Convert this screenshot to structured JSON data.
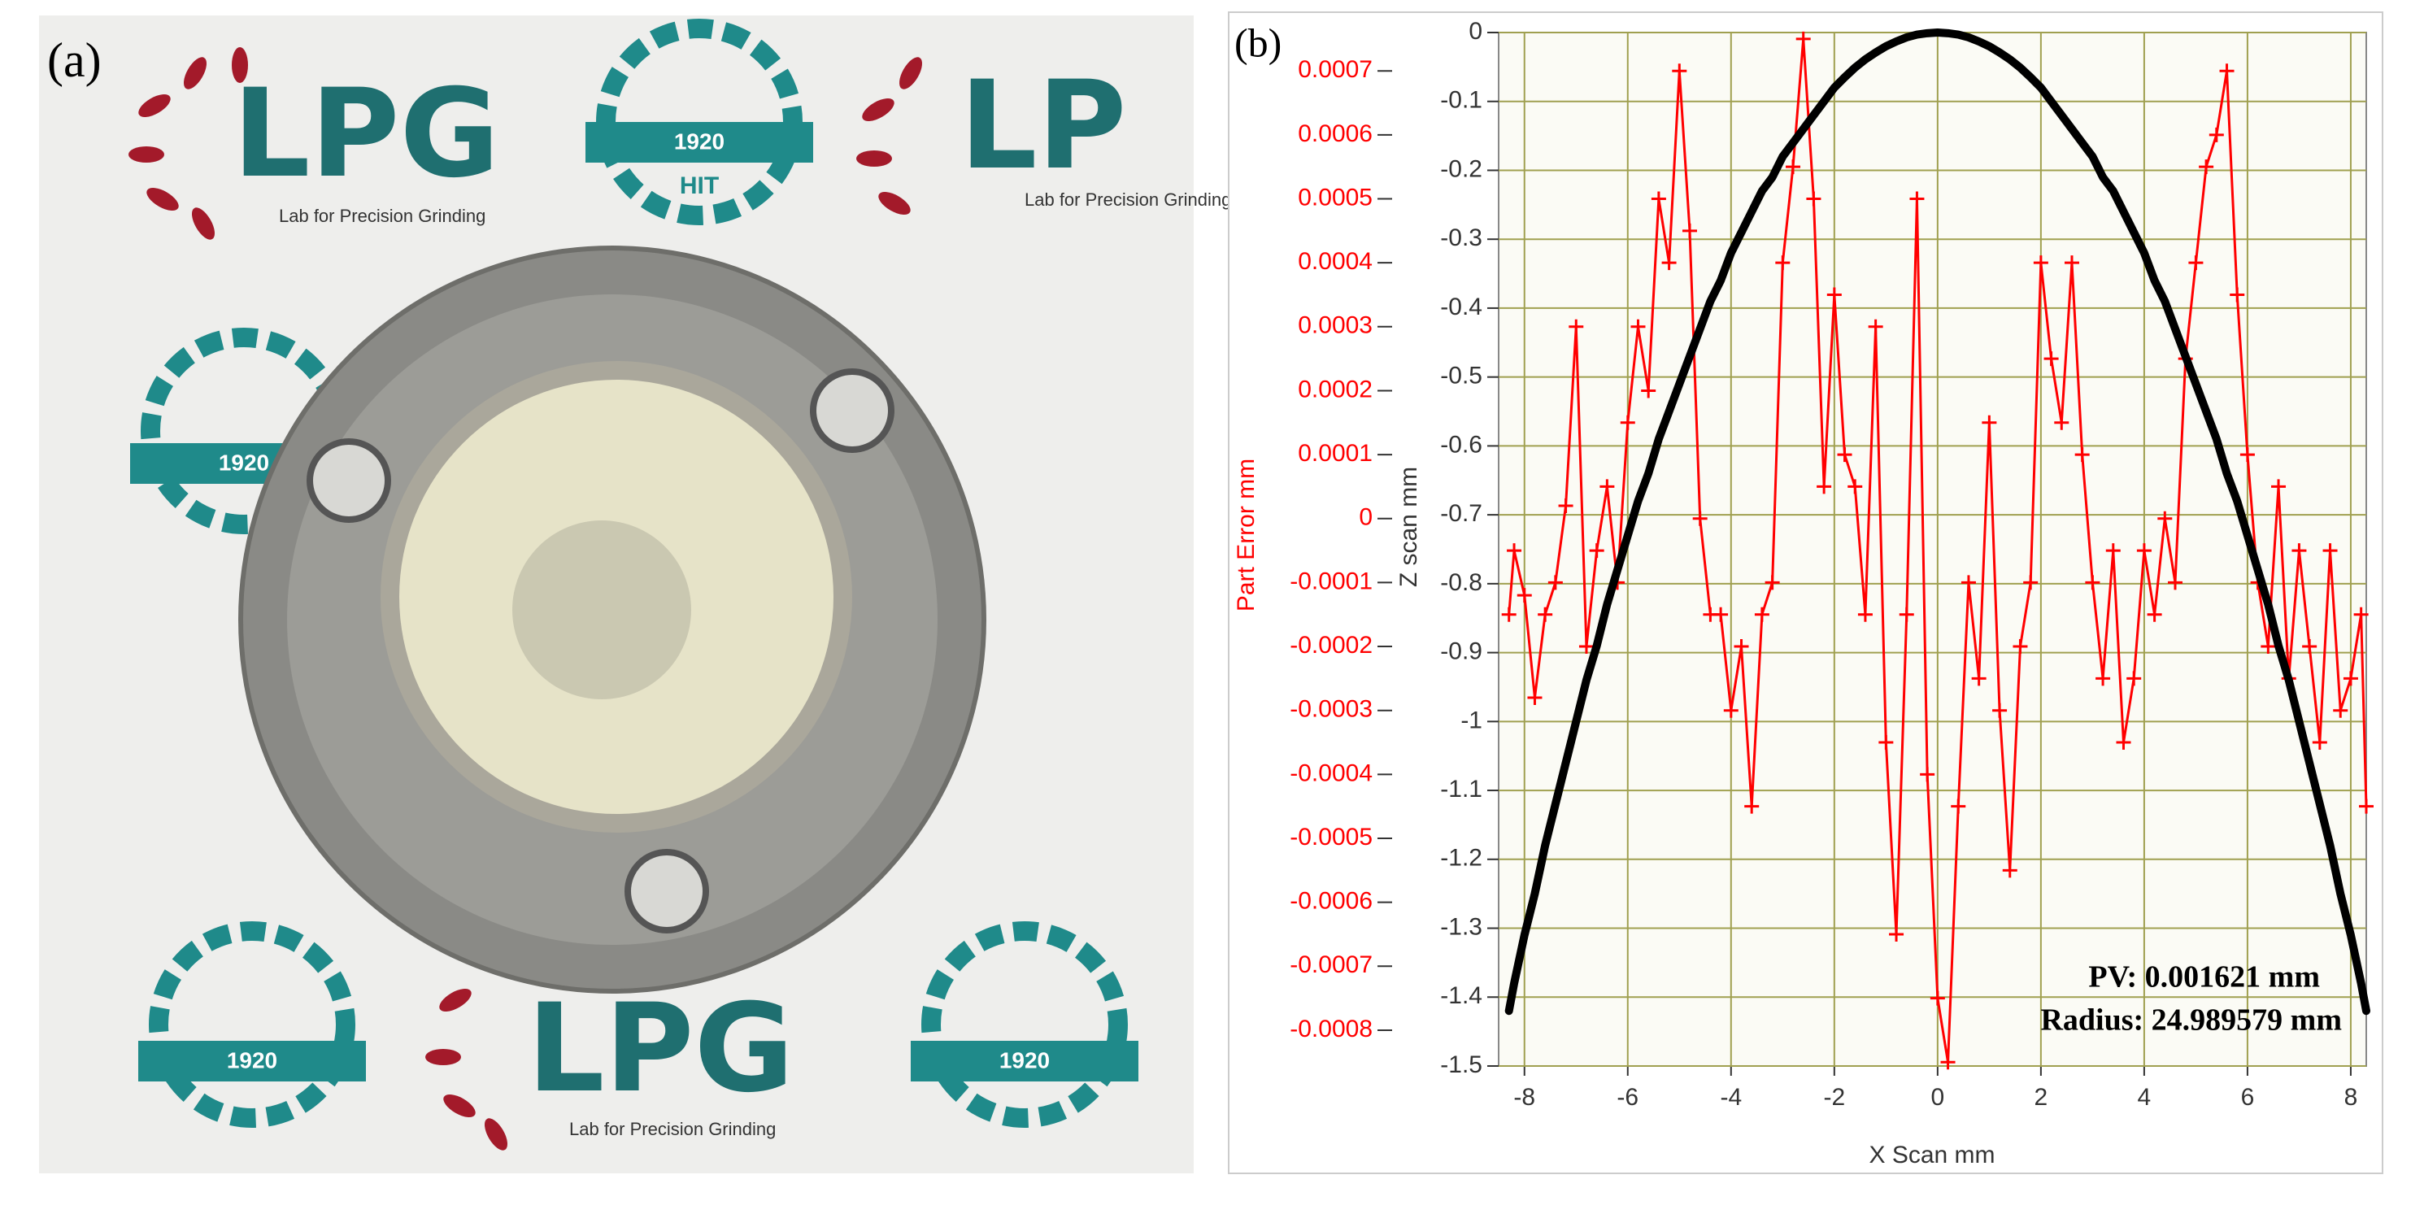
{
  "panels": {
    "a": "(a)"
  },
  "photo": {
    "logo_text": "LPG",
    "logo_text_cropped": "LP",
    "logo_subtitle": "Lab for Precision Grinding",
    "emblem_year": "1920",
    "emblem_text": "HIT"
  },
  "chart_data": {
    "type": "line",
    "panel_label": "(b)",
    "xlabel": "X Scan mm",
    "ylabel": "Z scan mm",
    "y2label": "Part Error mm",
    "x": [
      -8.3,
      -8.2,
      -8.0,
      -7.8,
      -7.6,
      -7.4,
      -7.2,
      -7.0,
      -6.8,
      -6.6,
      -6.4,
      -6.2,
      -6.0,
      -5.8,
      -5.6,
      -5.4,
      -5.2,
      -5.0,
      -4.8,
      -4.6,
      -4.4,
      -4.2,
      -4.0,
      -3.8,
      -3.6,
      -3.4,
      -3.2,
      -3.0,
      -2.8,
      -2.6,
      -2.4,
      -2.2,
      -2.0,
      -1.8,
      -1.6,
      -1.4,
      -1.2,
      -1.0,
      -0.8,
      -0.6,
      -0.4,
      -0.2,
      0.0,
      0.2,
      0.4,
      0.6,
      0.8,
      1.0,
      1.2,
      1.4,
      1.6,
      1.8,
      2.0,
      2.2,
      2.4,
      2.6,
      2.8,
      3.0,
      3.2,
      3.4,
      3.6,
      3.8,
      4.0,
      4.2,
      4.4,
      4.6,
      4.8,
      5.0,
      5.2,
      5.4,
      5.6,
      5.8,
      6.0,
      6.2,
      6.4,
      6.6,
      6.8,
      7.0,
      7.2,
      7.4,
      7.6,
      7.8,
      8.0,
      8.2,
      8.3
    ],
    "xlim": [
      -8.5,
      8.3
    ],
    "xticks": [
      -8,
      -6,
      -4,
      -2,
      0,
      2,
      4,
      6,
      8
    ],
    "ylim": [
      -1.5,
      0
    ],
    "yticks": [
      0,
      -0.1,
      -0.2,
      -0.3,
      -0.4,
      -0.5,
      -0.6,
      -0.7,
      -0.8,
      -0.9,
      -1,
      -1.1,
      -1.2,
      -1.3,
      -1.4,
      -1.5
    ],
    "y2lim": [
      -0.000856,
      0.00076
    ],
    "y2ticks": [
      0.0007,
      0.0006,
      0.0005,
      0.0004,
      0.0003,
      0.0002,
      0.0001,
      0,
      -0.0001,
      -0.0002,
      -0.0003,
      -0.0004,
      -0.0005,
      -0.0006,
      -0.0007,
      -0.0008
    ],
    "grid": true,
    "grid_color": "#a0a050",
    "series": [
      {
        "color": "#ff0000",
        "axis": "y2",
        "marker": "+",
        "values": [
          -0.00015,
          -5e-05,
          -0.00012,
          -0.00028,
          -0.00015,
          -0.0001,
          2e-05,
          0.0003,
          -0.0002,
          -5e-05,
          5e-05,
          -0.0001,
          0.00015,
          0.0003,
          0.0002,
          0.0005,
          0.0004,
          0.0007,
          0.00045,
          0,
          -0.00015,
          -0.00015,
          -0.0003,
          -0.0002,
          -0.00045,
          -0.00015,
          -0.0001,
          0.0004,
          0.00055,
          0.00075,
          0.0005,
          5e-05,
          0.00035,
          0.0001,
          5e-05,
          -0.00015,
          0.0003,
          -0.00035,
          -0.00065,
          -0.00015,
          0.0005,
          -0.0004,
          -0.00075,
          -0.00085,
          -0.00045,
          -0.0001,
          -0.00025,
          0.00015,
          -0.0003,
          -0.00055,
          -0.0002,
          -0.0001,
          0.0004,
          0.00025,
          0.00015,
          0.0004,
          0.0001,
          -0.0001,
          -0.00025,
          -5e-05,
          -0.00035,
          -0.00025,
          -5e-05,
          -0.00015,
          0,
          -0.0001,
          0.00025,
          0.0004,
          0.00055,
          0.0006,
          0.0007,
          0.00035,
          0.0001,
          -0.0001,
          -0.0002,
          5e-05,
          -0.00025,
          -5e-05,
          -0.0002,
          -0.00035,
          -5e-05,
          -0.0003,
          -0.00025,
          -0.00015,
          -0.00045
        ]
      },
      {
        "color": "#000000",
        "values": [
          -1.42,
          -1.38,
          -1.31,
          -1.25,
          -1.18,
          -1.12,
          -1.06,
          -1.0,
          -0.94,
          -0.89,
          -0.83,
          -0.78,
          -0.73,
          -0.68,
          -0.64,
          -0.59,
          -0.55,
          -0.51,
          -0.47,
          -0.43,
          -0.39,
          -0.36,
          -0.32,
          -0.29,
          -0.26,
          -0.23,
          -0.21,
          -0.18,
          -0.16,
          -0.14,
          -0.12,
          -0.1,
          -0.08,
          -0.065,
          -0.051,
          -0.039,
          -0.029,
          -0.02,
          -0.013,
          -0.007,
          -0.003,
          -0.001,
          0,
          -0.001,
          -0.003,
          -0.007,
          -0.013,
          -0.02,
          -0.029,
          -0.039,
          -0.051,
          -0.065,
          -0.08,
          -0.1,
          -0.12,
          -0.14,
          -0.16,
          -0.18,
          -0.21,
          -0.23,
          -0.26,
          -0.29,
          -0.32,
          -0.36,
          -0.39,
          -0.43,
          -0.47,
          -0.51,
          -0.55,
          -0.59,
          -0.64,
          -0.68,
          -0.73,
          -0.78,
          -0.83,
          -0.89,
          -0.94,
          -1.0,
          -1.06,
          -1.12,
          -1.18,
          -1.25,
          -1.31,
          -1.38,
          -1.42
        ]
      }
    ],
    "annotations": [
      "PV: 0.001621 mm",
      "Radius: 24.989579 mm"
    ]
  }
}
